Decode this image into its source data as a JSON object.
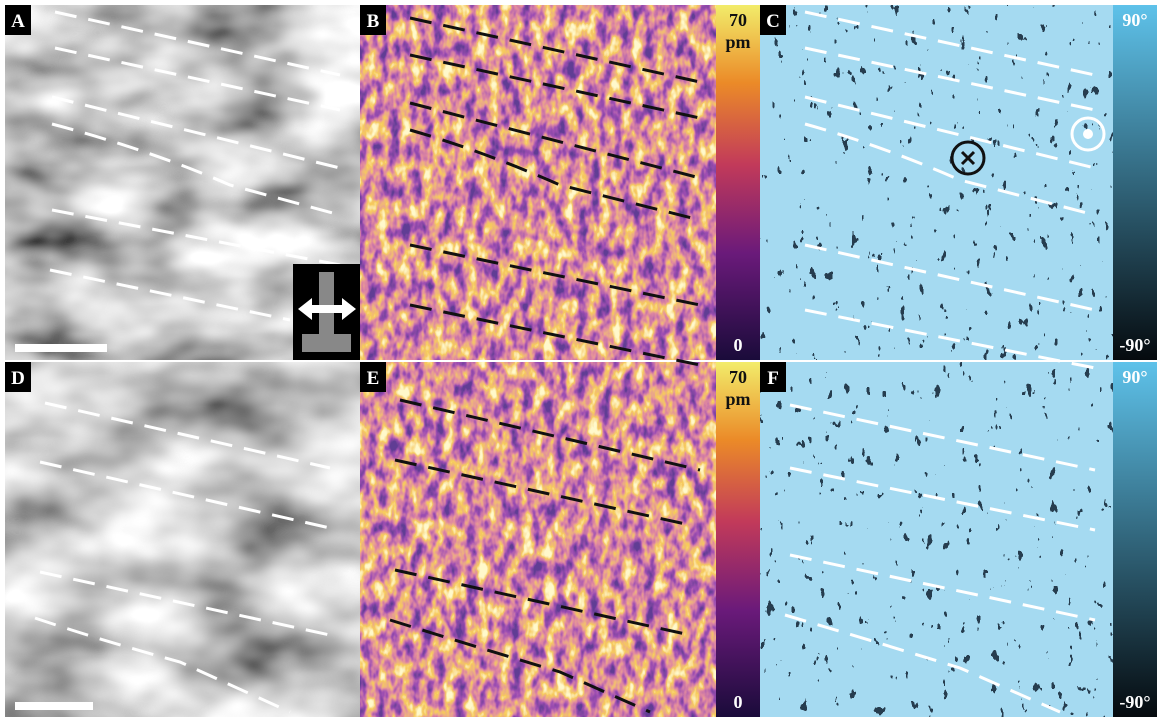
{
  "panels": [
    {
      "label": "A"
    },
    {
      "label": "B",
      "colorbar": {
        "max": "70",
        "unit": "pm",
        "min": "0"
      }
    },
    {
      "label": "C",
      "colorbar": {
        "max": "90°",
        "min": "-90°"
      }
    },
    {
      "label": "D"
    },
    {
      "label": "E",
      "colorbar": {
        "max": "70",
        "unit": "pm",
        "min": "0"
      }
    },
    {
      "label": "F",
      "colorbar": {
        "max": "90°",
        "min": "-90°"
      }
    }
  ]
}
